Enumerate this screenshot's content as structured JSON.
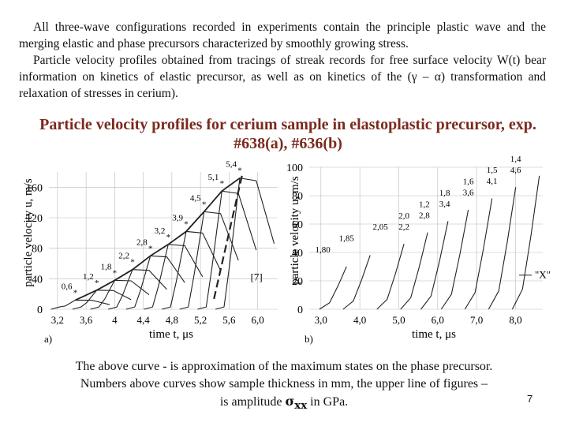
{
  "intro": {
    "p1": "All three-wave configurations recorded in experiments contain the principle plastic wave and the merging elastic and phase precursors characterized by smoothly growing stress.",
    "p2": "Particle velocity profiles obtained from tracings of streak records for free surface velocity W(t) bear information on kinetics of elastic precursor, as well as on kinetics of the (γ – α) transformation and relaxation of stresses in cerium)."
  },
  "title": "Particle velocity profiles for cerium sample in elastoplastic precursor, exp. #638(a), #636(b)",
  "footer": {
    "line1": "The above curve - is approximation of the maximum states on the phase precursor.",
    "line2": "Numbers above curves show sample thickness in mm, the upper line of figures –",
    "line3_pre": "is amplitude ",
    "sigma": "σ",
    "sub": "xx",
    "line3_post": " in GPa."
  },
  "page_number": "7",
  "colors": {
    "title": "#7a2a1c",
    "curve": "#222222",
    "grid": "#bbbbbb"
  },
  "chart_data": [
    {
      "type": "line",
      "panel": "a)",
      "ylabel": "particle velocity u, m/s",
      "xlabel": "time t, μs",
      "xticks": [
        "3,2",
        "3,6",
        "4",
        "4,4",
        "4,8",
        "5,2",
        "5,6",
        "6,0"
      ],
      "xlim": [
        3.0,
        6.2
      ],
      "ylim": [
        0,
        180
      ],
      "yticks": [
        0,
        40,
        80,
        120,
        160
      ],
      "grid": true,
      "thickness_labels": [
        "0,6",
        "1,2",
        "1,8",
        "2,2",
        "2,8",
        "3,2",
        "3,9",
        "4,5",
        "5,1",
        "5,4"
      ],
      "fronts_x": [
        3.15,
        3.45,
        3.7,
        3.95,
        4.2,
        4.45,
        4.7,
        4.95,
        5.2,
        5.45
      ],
      "peaks_y": [
        12,
        25,
        38,
        52,
        70,
        85,
        102,
        128,
        155,
        172
      ],
      "annotation": "[7]"
    },
    {
      "type": "line",
      "panel": "b)",
      "ylabel": "particle velocity u, m/s",
      "xlabel": "time t, μs",
      "xticks": [
        "3,0",
        "4,0",
        "5,0",
        "6,0",
        "7,0",
        "8,0"
      ],
      "xlim": [
        2.0,
        8.9
      ],
      "ylim": [
        0,
        100
      ],
      "yticks": [
        0,
        20,
        40,
        60,
        80,
        100
      ],
      "grid": true,
      "thickness_labels": [
        "1,80",
        "1,85",
        "2,05",
        "2,0",
        "1,2",
        "1,8",
        "1,6",
        "1,5",
        "1,4"
      ],
      "amplitude_labels": [
        "",
        "",
        "",
        "2,2",
        "2,8",
        "3,4",
        "3,6",
        "4,1",
        "4,6"
      ],
      "fronts_x": [
        2.6,
        3.3,
        4.3,
        5.0,
        5.6,
        6.2,
        6.9,
        7.6,
        8.3
      ],
      "annotation": "\"X\""
    }
  ]
}
